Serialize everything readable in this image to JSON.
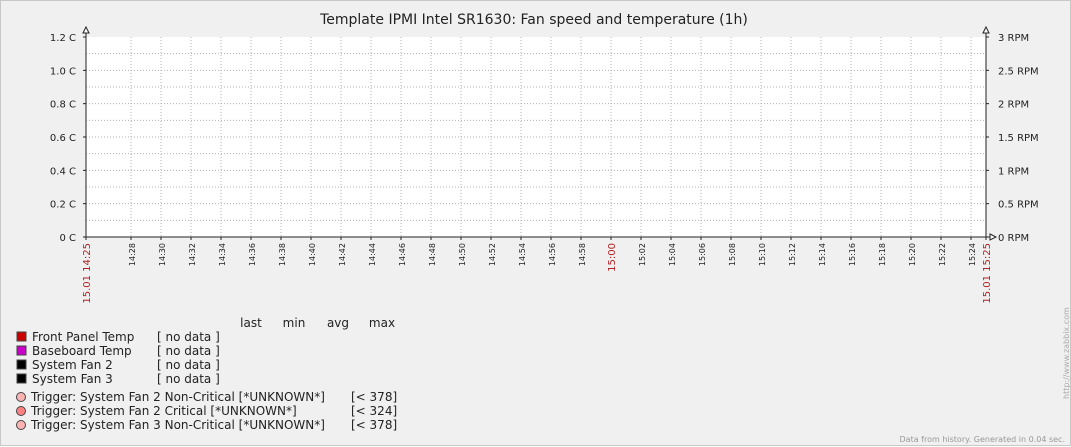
{
  "chart_data": {
    "type": "line",
    "title": "Template IPMI Intel SR1630: Fan speed and temperature (1h)",
    "y_left": {
      "ticks": [
        "1.2 C",
        "1.0 C",
        "0.8 C",
        "0.6 C",
        "0.4 C",
        "0.2 C",
        "0 C"
      ],
      "range": [
        0,
        1.2
      ],
      "unit": "C"
    },
    "y_right": {
      "ticks": [
        "3 RPM",
        "2.5 RPM",
        "2 RPM",
        "1.5 RPM",
        "1 RPM",
        "0.5 RPM",
        "0 RPM"
      ],
      "range": [
        0,
        3
      ],
      "unit": "RPM"
    },
    "x_ticks": [
      "15.01 14:25",
      "14:28",
      "14:30",
      "14:32",
      "14:34",
      "14:36",
      "14:38",
      "14:40",
      "14:42",
      "14:44",
      "14:46",
      "14:48",
      "14:50",
      "14:52",
      "14:54",
      "14:56",
      "14:58",
      "15:00",
      "15:02",
      "15:04",
      "15:06",
      "15:08",
      "15:10",
      "15:12",
      "15:14",
      "15:16",
      "15:18",
      "15:20",
      "15:22",
      "15:24",
      "15.01 15:25"
    ],
    "x_highlight": [
      "15.01 14:25",
      "15:00",
      "15.01 15:25"
    ],
    "grid": true,
    "legend_header": {
      "last": "last",
      "min": "min",
      "avg": "avg",
      "max": "max"
    },
    "series": [
      {
        "name": "Front Panel Temp",
        "color": "#c80000",
        "status": "[ no data ]"
      },
      {
        "name": "Baseboard Temp",
        "color": "#c800c8",
        "status": "[ no data ]"
      },
      {
        "name": "System Fan 2",
        "color": "#000000",
        "status": "[ no data ]"
      },
      {
        "name": "System Fan 3",
        "color": "#000000",
        "status": "[ no data ]"
      }
    ],
    "triggers": [
      {
        "label": "Trigger: System Fan 2 Non-Critical [*UNKNOWN*]",
        "value": "[< 378]",
        "color": "#ffb4b4"
      },
      {
        "label": "Trigger: System Fan 2 Critical [*UNKNOWN*]",
        "value": "[< 324]",
        "color": "#ff8080"
      },
      {
        "label": "Trigger: System Fan 3 Non-Critical [*UNKNOWN*]",
        "value": "[< 378]",
        "color": "#ffb4b4"
      }
    ],
    "watermark": "http://www.zabbix.com",
    "footer": "Data from history. Generated in 0.04 sec."
  }
}
